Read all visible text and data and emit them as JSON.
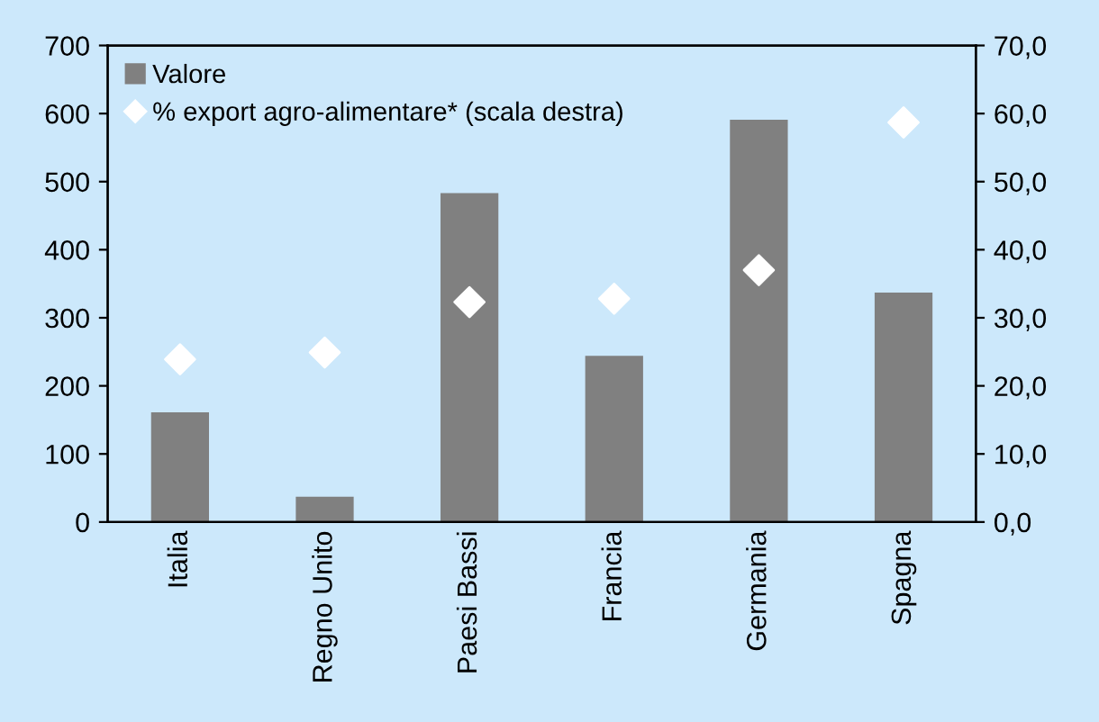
{
  "chart_data": {
    "type": "bar",
    "categories": [
      "Italia",
      "Regno Unito",
      "Paesi Bassi",
      "Francia",
      "Germania",
      "Spagna"
    ],
    "series": [
      {
        "name": "Valore",
        "color": "#808080",
        "values": [
          161,
          37,
          483,
          244,
          591,
          337
        ]
      },
      {
        "name": "% export agro-alimentare* (scala destra)",
        "type": "scatter",
        "axis": "y2",
        "color": "#ffffff",
        "marker": "diamond",
        "values": [
          23.9,
          24.9,
          32.3,
          32.8,
          37.0,
          58.7
        ]
      }
    ],
    "ylim": [
      0,
      700
    ],
    "yticks": [
      0,
      100,
      200,
      300,
      400,
      500,
      600,
      700
    ],
    "y2lim": [
      0,
      70
    ],
    "y2ticks": [
      {
        "value": 0,
        "label": "0,0"
      },
      {
        "value": 10,
        "label": "10,0"
      },
      {
        "value": 20,
        "label": "20,0"
      },
      {
        "value": 30,
        "label": "30,0"
      },
      {
        "value": 40,
        "label": "40,0"
      },
      {
        "value": 50,
        "label": "50,0"
      },
      {
        "value": 60,
        "label": "60,0"
      },
      {
        "value": 70,
        "label": "70,0"
      }
    ],
    "grid": false,
    "legend": "top left"
  }
}
